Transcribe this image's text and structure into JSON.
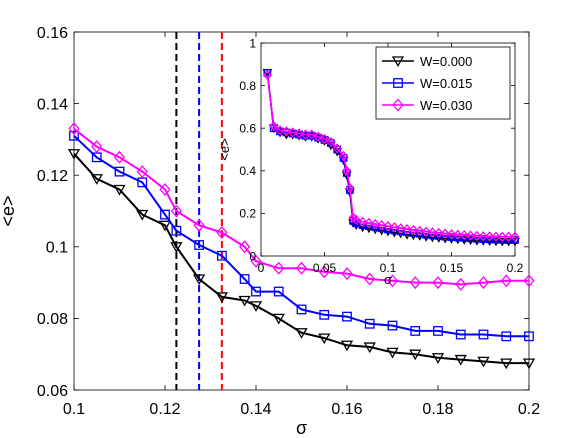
{
  "chart_data": [
    {
      "type": "line",
      "panel": "main",
      "xlabel": "σ",
      "ylabel": "<e>",
      "xlim": [
        0.1,
        0.2
      ],
      "ylim": [
        0.06,
        0.16
      ],
      "xticks": [
        "0.1",
        "0.12",
        "0.14",
        "0.16",
        "0.18",
        "0.2"
      ],
      "yticks": [
        "0.06",
        "0.08",
        "0.1",
        "0.12",
        "0.14",
        "0.16"
      ],
      "grid": false,
      "x": [
        0.1,
        0.105,
        0.11,
        0.115,
        0.12,
        0.1225,
        0.1275,
        0.1325,
        0.1375,
        0.14,
        0.145,
        0.15,
        0.155,
        0.16,
        0.165,
        0.17,
        0.175,
        0.18,
        0.185,
        0.19,
        0.195,
        0.2
      ],
      "series": [
        {
          "name": "W=0.000",
          "color": "#000000",
          "marker": "triangle-down",
          "values": [
            0.126,
            0.119,
            0.116,
            0.109,
            0.106,
            0.1,
            0.091,
            0.086,
            0.085,
            0.0835,
            0.08,
            0.076,
            0.0745,
            0.0725,
            0.072,
            0.0705,
            0.07,
            0.069,
            0.0685,
            0.068,
            0.0675,
            0.0675
          ]
        },
        {
          "name": "W=0.015",
          "color": "#0000ff",
          "marker": "square",
          "values": [
            0.131,
            0.125,
            0.121,
            0.118,
            0.109,
            0.1045,
            0.1005,
            0.0975,
            0.091,
            0.0875,
            0.0875,
            0.0825,
            0.081,
            0.0805,
            0.0785,
            0.078,
            0.0765,
            0.0765,
            0.0755,
            0.0755,
            0.075,
            0.075
          ]
        },
        {
          "name": "W=0.030",
          "color": "#ff00ff",
          "marker": "diamond",
          "values": [
            0.133,
            0.128,
            0.125,
            0.121,
            0.116,
            0.11,
            0.106,
            0.104,
            0.1,
            0.096,
            0.094,
            0.094,
            0.093,
            0.0925,
            0.091,
            0.0905,
            0.09,
            0.09,
            0.0895,
            0.09,
            0.0905,
            0.0905
          ]
        }
      ],
      "vlines": [
        {
          "x": 0.1225,
          "color": "#000000",
          "style": "dashed"
        },
        {
          "x": 0.1275,
          "color": "#0000ff",
          "style": "dashed"
        },
        {
          "x": 0.1325,
          "color": "#ff0000",
          "style": "dashed"
        }
      ]
    },
    {
      "type": "line",
      "panel": "inset",
      "xlabel": "σ",
      "ylabel": "<e>",
      "xlim": [
        0,
        0.2
      ],
      "ylim": [
        0,
        1
      ],
      "xticks": [
        "0",
        "0.05",
        "0.1",
        "0.15",
        "0.2"
      ],
      "yticks": [
        "0",
        "0.2",
        "0.4",
        "0.6",
        "0.8",
        "1"
      ],
      "grid": false,
      "legend_position": "top-right",
      "x": [
        0.005,
        0.01,
        0.015,
        0.02,
        0.025,
        0.03,
        0.035,
        0.04,
        0.045,
        0.05,
        0.055,
        0.06,
        0.065,
        0.0675,
        0.07,
        0.0725,
        0.075,
        0.08,
        0.085,
        0.09,
        0.095,
        0.1,
        0.105,
        0.11,
        0.115,
        0.12,
        0.125,
        0.13,
        0.135,
        0.14,
        0.145,
        0.15,
        0.155,
        0.16,
        0.165,
        0.17,
        0.175,
        0.18,
        0.185,
        0.19,
        0.195,
        0.2
      ],
      "series": [
        {
          "name": "W=0.000",
          "color": "#000000",
          "marker": "triangle-down",
          "values": [
            0.86,
            0.6,
            0.58,
            0.57,
            0.57,
            0.565,
            0.56,
            0.56,
            0.55,
            0.54,
            0.52,
            0.49,
            0.45,
            0.38,
            0.3,
            0.155,
            0.145,
            0.135,
            0.13,
            0.125,
            0.12,
            0.115,
            0.11,
            0.105,
            0.1,
            0.097,
            0.094,
            0.09,
            0.087,
            0.085,
            0.082,
            0.08,
            0.078,
            0.076,
            0.074,
            0.072,
            0.071,
            0.07,
            0.069,
            0.068,
            0.0675,
            0.0675
          ]
        },
        {
          "name": "W=0.015",
          "color": "#0000ff",
          "marker": "square",
          "values": [
            0.86,
            0.6,
            0.585,
            0.58,
            0.575,
            0.57,
            0.565,
            0.565,
            0.555,
            0.545,
            0.53,
            0.5,
            0.46,
            0.39,
            0.31,
            0.165,
            0.155,
            0.145,
            0.14,
            0.135,
            0.13,
            0.125,
            0.12,
            0.116,
            0.112,
            0.108,
            0.105,
            0.1,
            0.097,
            0.094,
            0.091,
            0.089,
            0.087,
            0.085,
            0.083,
            0.081,
            0.08,
            0.078,
            0.077,
            0.076,
            0.075,
            0.075
          ]
        },
        {
          "name": "W=0.030",
          "color": "#ff00ff",
          "marker": "diamond",
          "values": [
            0.85,
            0.61,
            0.59,
            0.585,
            0.58,
            0.575,
            0.57,
            0.57,
            0.56,
            0.55,
            0.535,
            0.505,
            0.47,
            0.4,
            0.32,
            0.18,
            0.17,
            0.16,
            0.155,
            0.15,
            0.145,
            0.14,
            0.135,
            0.13,
            0.126,
            0.122,
            0.118,
            0.114,
            0.111,
            0.108,
            0.105,
            0.102,
            0.1,
            0.098,
            0.096,
            0.094,
            0.093,
            0.092,
            0.091,
            0.09,
            0.0905,
            0.0905
          ]
        }
      ]
    }
  ]
}
